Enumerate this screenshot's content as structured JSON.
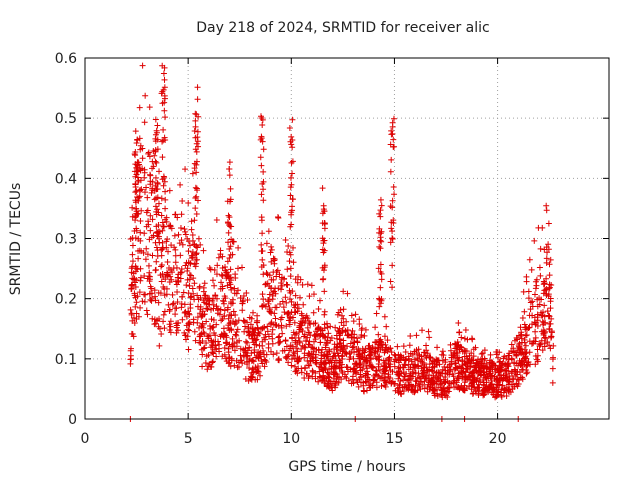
{
  "chart_data": {
    "type": "scatter",
    "title": "Day 218 of 2024, SRMTID for receiver alic",
    "xlabel": "GPS time / hours",
    "ylabel": "SRMTID / TECUs",
    "xlim": [
      0,
      25.4
    ],
    "ylim": [
      0,
      0.6
    ],
    "x_ticks": [
      0,
      5,
      10,
      15,
      20
    ],
    "y_ticks": [
      0,
      0.1,
      0.2,
      0.3,
      0.4,
      0.5,
      0.6
    ],
    "x_tick_labels": [
      "0",
      "5",
      "10",
      "15",
      "20"
    ],
    "y_tick_labels": [
      "0",
      "0.1",
      "0.2",
      "0.3",
      "0.4",
      "0.5",
      "0.6"
    ],
    "grid": true,
    "marker": "plus",
    "color": "#dd0000",
    "series": [
      {
        "name": "SRMTID",
        "profile_x": [
          2.2,
          2.5,
          2.8,
          3.0,
          3.3,
          3.6,
          3.9,
          4.2,
          4.6,
          5.0,
          5.3,
          5.6,
          6.0,
          6.5,
          7.0,
          7.5,
          8.0,
          8.5,
          9.0,
          9.5,
          10.0,
          10.5,
          11.0,
          11.5,
          12.0,
          12.5,
          13.0,
          13.5,
          14.0,
          14.5,
          15.0,
          15.5,
          16.0,
          16.5,
          17.0,
          17.5,
          18.0,
          18.5,
          19.0,
          19.5,
          20.0,
          20.5,
          21.0,
          21.5,
          22.0,
          22.5,
          22.7
        ],
        "profile_y": [
          0.16,
          0.3,
          0.32,
          0.26,
          0.3,
          0.22,
          0.26,
          0.22,
          0.27,
          0.2,
          0.25,
          0.16,
          0.14,
          0.2,
          0.16,
          0.15,
          0.1,
          0.12,
          0.2,
          0.17,
          0.15,
          0.12,
          0.12,
          0.1,
          0.08,
          0.12,
          0.1,
          0.08,
          0.09,
          0.1,
          0.08,
          0.07,
          0.08,
          0.08,
          0.07,
          0.06,
          0.09,
          0.08,
          0.07,
          0.07,
          0.06,
          0.07,
          0.1,
          0.14,
          0.17,
          0.22,
          0.09
        ],
        "peaks": [
          {
            "x": 2.5,
            "y": 0.48
          },
          {
            "x": 3.5,
            "y": 0.5
          },
          {
            "x": 3.8,
            "y": 0.59
          },
          {
            "x": 5.4,
            "y": 0.56
          },
          {
            "x": 7.0,
            "y": 0.43
          },
          {
            "x": 8.6,
            "y": 0.51
          },
          {
            "x": 10.0,
            "y": 0.5
          },
          {
            "x": 11.6,
            "y": 0.39
          },
          {
            "x": 14.9,
            "y": 0.5
          },
          {
            "x": 14.3,
            "y": 0.37
          }
        ],
        "zero_points": [
          2.2,
          13.1,
          17.3,
          18.4,
          21.0
        ]
      }
    ]
  }
}
